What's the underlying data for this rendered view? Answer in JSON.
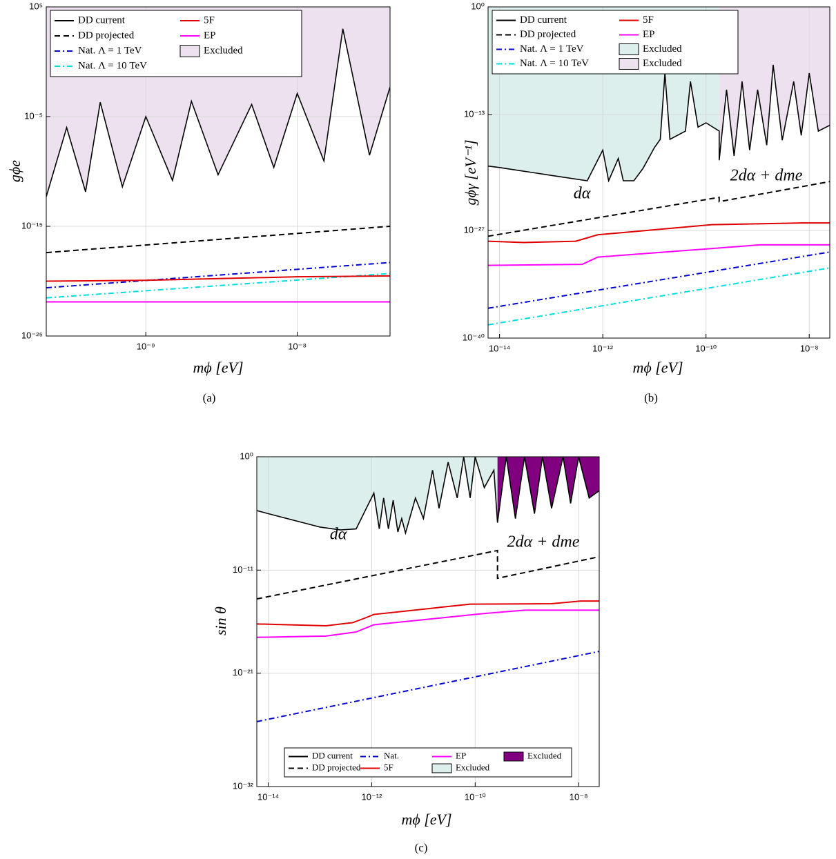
{
  "chart_data": [
    {
      "type": "line",
      "caption": "(a)",
      "xlabel": "mϕ [eV]",
      "ylabel": "gϕe",
      "xscale": "log",
      "yscale": "log",
      "grid": true,
      "xlim": [
        2.2e-10,
        4.1e-08
      ],
      "ylim": [
        1e-25,
        100000.0
      ],
      "xticks": [
        {
          "value": 1e-09,
          "label": "10⁻⁹"
        },
        {
          "value": 1e-08,
          "label": "10⁻⁸"
        }
      ],
      "yticks": [
        {
          "value": 100000.0,
          "label": "10⁵"
        },
        {
          "value": 1e-05,
          "label": "10⁻⁵"
        },
        {
          "value": 1e-15,
          "label": "10⁻¹⁵"
        },
        {
          "value": 1e-25,
          "label": "10⁻²⁵"
        }
      ],
      "legend": {
        "loc": "upper left",
        "columns": 2
      },
      "series": [
        {
          "name": "DD current",
          "color": "#000000",
          "dash": "solid",
          "x": [
            2.2e-10,
            3e-10,
            4e-10,
            5e-10,
            7e-10,
            1e-09,
            1.5e-09,
            2e-09,
            3e-09,
            5e-09,
            7e-09,
            1e-08,
            1.5e-08,
            2e-08,
            3e-08,
            4.1e-08
          ],
          "values": [
            5e-13,
            1e-06,
            1.4e-12,
            0.0002,
            4e-12,
            1e-05,
            1.5e-11,
            0.00025,
            5e-11,
            0.00013,
            2.3e-10,
            0.0013,
            9e-10,
            1000.0,
            3e-09,
            0.005
          ]
        },
        {
          "name": "DD projected",
          "color": "#000000",
          "dash": "dashed",
          "x": [
            2.2e-10,
            4.1e-08
          ],
          "values": [
            4e-18,
            1e-15
          ]
        },
        {
          "name": "Nat. Λ = 1 TeV",
          "color": "#0000cc",
          "dash": "dashdot",
          "x": [
            2.2e-10,
            4.1e-08
          ],
          "values": [
            2.5e-21,
            5e-19
          ]
        },
        {
          "name": "Nat. Λ = 10 TeV",
          "color": "#00dddd",
          "dash": "dashdot",
          "x": [
            2.2e-10,
            4.1e-08
          ],
          "values": [
            3e-22,
            5e-20
          ]
        },
        {
          "name": "5F",
          "color": "#e00000",
          "dash": "solid",
          "x": [
            2.2e-10,
            1e-09,
            1e-08,
            4.1e-08
          ],
          "values": [
            1e-20,
            1.2e-20,
            2.5e-20,
            3e-20
          ]
        },
        {
          "name": "EP",
          "color": "#ff00ff",
          "dash": "solid",
          "x": [
            2.2e-10,
            4.1e-08
          ],
          "values": [
            1.3e-22,
            1.3e-22
          ]
        }
      ],
      "regions": [
        {
          "name": "Excluded",
          "color": "#eee1ef"
        }
      ],
      "annotations": []
    },
    {
      "type": "line",
      "caption": "(b)",
      "xlabel": "mϕ [eV]",
      "ylabel": "gϕγ [eV⁻¹]",
      "xscale": "log",
      "yscale": "log",
      "grid": true,
      "xlim": [
        6e-15,
        2.5e-08
      ],
      "ylim": [
        1e-40,
        1
      ],
      "xticks": [
        {
          "value": 1e-14,
          "label": "10⁻¹⁴"
        },
        {
          "value": 1e-12,
          "label": "10⁻¹²"
        },
        {
          "value": 1e-10,
          "label": "10⁻¹⁰"
        },
        {
          "value": 1e-08,
          "label": "10⁻⁸"
        }
      ],
      "yticks": [
        {
          "value": 1,
          "label": "10⁰"
        },
        {
          "value": 1e-13,
          "label": "10⁻¹³"
        },
        {
          "value": 1e-27,
          "label": "10⁻²⁷"
        },
        {
          "value": 1e-40,
          "label": "10⁻⁴⁰"
        }
      ],
      "legend": {
        "loc": "upper left",
        "columns": 2
      },
      "series": [
        {
          "name": "DD current",
          "color": "#000000",
          "dash": "solid",
          "x": [
            6e-15,
            1e-14,
            1e-13,
            5e-13,
            1e-12,
            1.3e-12,
            2e-12,
            2.5e-12,
            4e-12,
            6e-12,
            1e-11,
            1.3e-11,
            1.6e-11,
            2e-11,
            4e-11,
            5e-11,
            7e-11,
            1e-10,
            1.8e-10,
            1.8e-10,
            2.5e-10,
            3.5e-10,
            5e-10,
            7e-10,
            1e-09,
            1.5e-09,
            2e-09,
            3e-09,
            5e-09,
            7e-09,
            1e-08,
            1.5e-08,
            2.5e-08
          ],
          "values": [
            6e-20,
            4e-20,
            4.5e-21,
            1e-21,
            5e-18,
            1e-21,
            5e-19,
            1e-21,
            1e-21,
            3e-20,
            1e-17,
            1e-16,
            1e-08,
            1e-16,
            1e-15,
            1e-09,
            3e-15,
            1e-14,
            1e-15,
            3e-19,
            1e-10,
            1e-18,
            1e-09,
            5e-18,
            1e-10,
            2e-17,
            1e-07,
            8e-17,
            1e-09,
            3e-16,
            1e-08,
            1e-15,
            5e-15
          ]
        },
        {
          "name": "DD projected",
          "color": "#000000",
          "dash": "dashed",
          "x": [
            6e-15,
            1.8e-10,
            1.8e-10,
            2.5e-08
          ],
          "values": [
            2e-28,
            1e-23,
            3e-24,
            8e-22
          ]
        },
        {
          "name": "Nat. Λ = 1 TeV",
          "color": "#0000cc",
          "dash": "dashdot",
          "x": [
            6e-15,
            2.5e-08
          ],
          "values": [
            4e-37,
            2.5e-30
          ]
        },
        {
          "name": "Nat. Λ = 10 TeV",
          "color": "#00dddd",
          "dash": "dashdot",
          "x": [
            6e-15,
            2.5e-08
          ],
          "values": [
            4e-39,
            3e-32
          ]
        },
        {
          "name": "5F",
          "color": "#e00000",
          "dash": "solid",
          "x": [
            6e-15,
            3e-14,
            3e-13,
            8e-13,
            1.3e-10,
            7e-09,
            2.5e-08
          ],
          "values": [
            5e-29,
            3.5e-29,
            5e-29,
            3e-28,
            5e-27,
            8e-27,
            8e-27
          ]
        },
        {
          "name": "EP",
          "color": "#ff00ff",
          "dash": "solid",
          "x": [
            6e-15,
            4e-13,
            8e-13,
            1.1e-09,
            2.5e-08
          ],
          "values": [
            6e-32,
            8e-32,
            6e-31,
            1.8e-29,
            1.8e-29
          ]
        }
      ],
      "regions": [
        {
          "name": "Excluded",
          "color": "#dcefec",
          "to": 1.8e-10
        },
        {
          "name": "Excluded",
          "color": "#eee1ef",
          "from": 1.8e-10
        }
      ],
      "annotations": [
        {
          "text": "dα",
          "color": "#2a8a8a"
        },
        {
          "text": "2dα + dme",
          "color": "#800080"
        }
      ]
    },
    {
      "type": "line",
      "caption": "(c)",
      "xlabel": "mϕ [eV]",
      "ylabel": "sin θ",
      "xscale": "log",
      "yscale": "log",
      "grid": true,
      "xlim": [
        6e-15,
        2.5e-08
      ],
      "ylim": [
        1e-32,
        1
      ],
      "xticks": [
        {
          "value": 1e-14,
          "label": "10⁻¹⁴"
        },
        {
          "value": 1e-12,
          "label": "10⁻¹²"
        },
        {
          "value": 1e-10,
          "label": "10⁻¹⁰"
        },
        {
          "value": 1e-08,
          "label": "10⁻⁸"
        }
      ],
      "yticks": [
        {
          "value": 1,
          "label": "10⁰"
        },
        {
          "value": 1e-11,
          "label": "10⁻¹¹"
        },
        {
          "value": 1e-21,
          "label": "10⁻²¹"
        },
        {
          "value": 1e-32,
          "label": "10⁻³²"
        }
      ],
      "legend": {
        "loc": "lower center",
        "columns": 4
      },
      "series": [
        {
          "name": "DD current",
          "color": "#000000",
          "dash": "solid",
          "x": [
            6e-15,
            1e-14,
            1e-13,
            2.5e-13,
            5e-13,
            1.1e-12,
            1.4e-12,
            1.7e-12,
            2.1e-12,
            2.6e-12,
            3.2e-12,
            3.8e-12,
            4.5e-12,
            7e-12,
            1e-11,
            1.5e-11,
            2e-11,
            3e-11,
            4.5e-11,
            6e-11,
            8e-11,
            1e-10,
            1.5e-10,
            2.3e-10,
            2.7e-10,
            4e-10,
            6e-10,
            9e-10,
            1.4e-09,
            2e-09,
            3e-09,
            5e-09,
            7e-09,
            1e-08,
            1.6e-08,
            2.5e-08
          ],
          "values": [
            6e-06,
            3e-06,
            1.5e-07,
            8e-08,
            1e-07,
            0.0003,
            1e-07,
            0.0001,
            1e-07,
            6e-05,
            5e-08,
            1e-06,
            4e-08,
            0.0001,
            1e-06,
            0.05,
            1e-05,
            0.3,
            0.0001,
            1,
            0.0001,
            1,
            0.001,
            0.05,
            4e-07,
            1,
            1e-06,
            1,
            3e-06,
            1,
            1e-05,
            1,
            3e-05,
            1,
            0.0001,
            0.0005
          ]
        },
        {
          "name": "DD projected",
          "color": "#000000",
          "dash": "dashed",
          "x": [
            6e-15,
            2.7e-10,
            2.7e-10,
            2.5e-08
          ],
          "values": [
            1.6e-14,
            8e-10,
            1.6e-12,
            2e-10
          ]
        },
        {
          "name": "Nat.",
          "color": "#0000cc",
          "dash": "dashdot",
          "x": [
            6e-15,
            2.5e-08
          ],
          "values": [
            2e-26,
            1.3e-19
          ]
        },
        {
          "name": "5F",
          "color": "#e00000",
          "dash": "solid",
          "x": [
            6e-15,
            1.3e-13,
            4.3e-13,
            7e-13,
            1.1e-12,
            8e-11,
            3e-09,
            1.1e-08,
            2.5e-08
          ],
          "values": [
            6e-17,
            4e-17,
            8e-17,
            2e-16,
            5e-16,
            5e-15,
            5.5e-15,
            1e-14,
            1e-14
          ]
        },
        {
          "name": "EP",
          "color": "#ff00ff",
          "dash": "solid",
          "x": [
            6e-15,
            1.3e-13,
            5e-13,
            1.1e-12,
            1.4e-10,
            9e-10,
            2.5e-08
          ],
          "values": [
            3e-18,
            4e-18,
            1e-17,
            5e-17,
            6e-16,
            1.3e-15,
            1.3e-15
          ]
        }
      ],
      "regions": [
        {
          "name": "Excluded",
          "color": "#dcefec",
          "to": 2.7e-10
        },
        {
          "name": "Excluded",
          "color": "#800080",
          "from": 2.7e-10
        }
      ],
      "annotations": [
        {
          "text": "dα",
          "color": "#2a8a8a"
        },
        {
          "text": "2dα + dme",
          "color": "#800080"
        }
      ]
    }
  ]
}
